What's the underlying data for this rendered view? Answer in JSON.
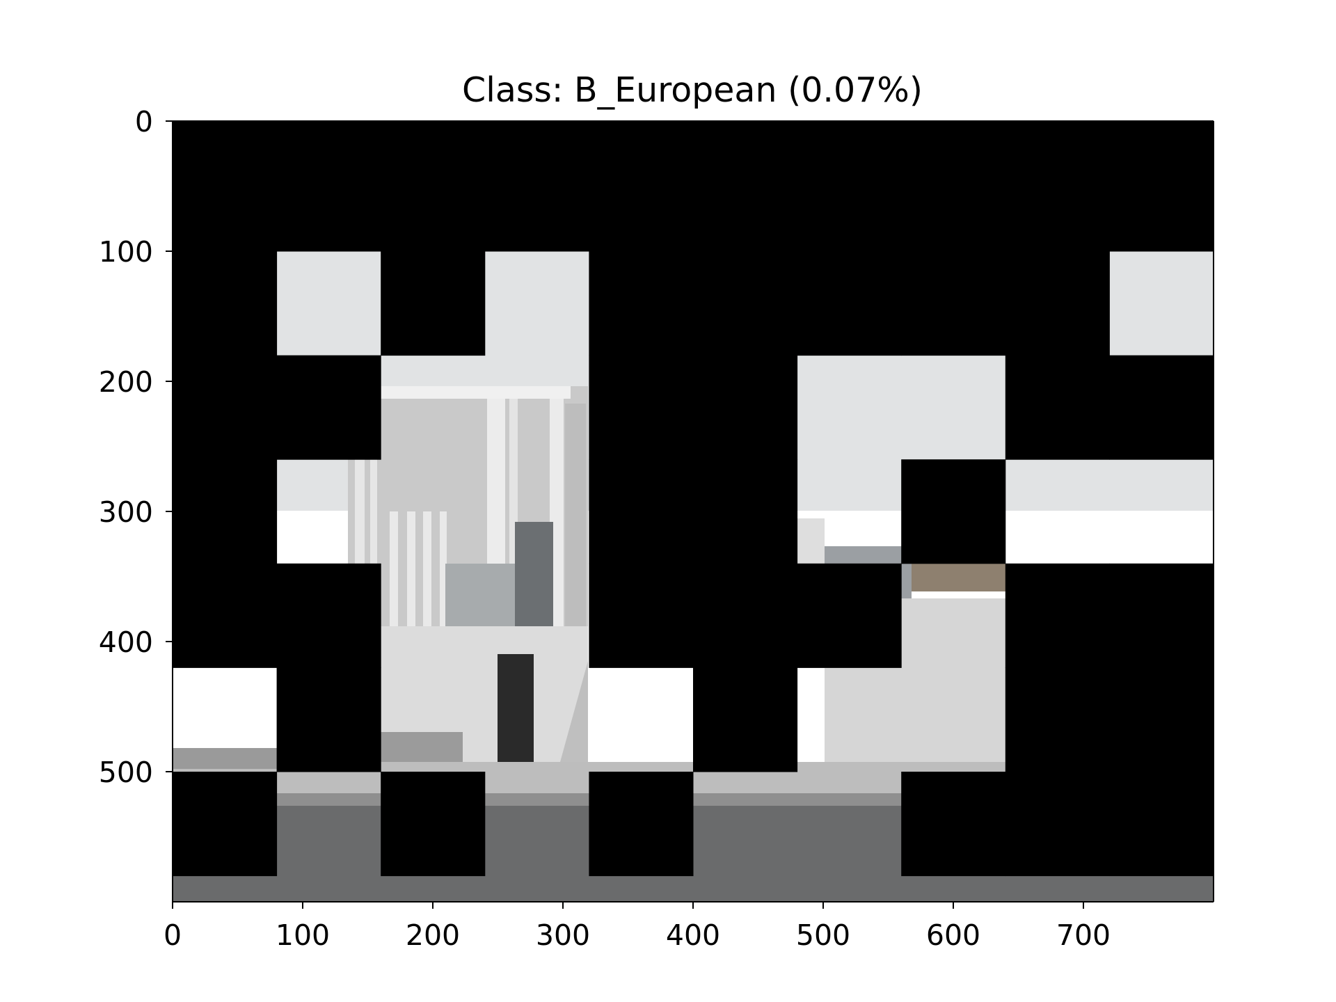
{
  "figure": {
    "title": "Class: B_European (0.07%)"
  },
  "image": {
    "description_free": true,
    "patch_grid": {
      "cols": 10,
      "rows": 8,
      "patch_size_data_units": 80
    },
    "visible_patches": [
      [
        1,
        2
      ],
      [
        3,
        2
      ],
      [
        9,
        2
      ],
      [
        3,
        3
      ],
      [
        2,
        3
      ],
      [
        6,
        3
      ],
      [
        7,
        3
      ],
      [
        1,
        4
      ],
      [
        2,
        4
      ],
      [
        3,
        4
      ],
      [
        6,
        4
      ],
      [
        8,
        4
      ],
      [
        9,
        4
      ],
      [
        2,
        5
      ],
      [
        3,
        5
      ],
      [
        7,
        5
      ],
      [
        0,
        6
      ],
      [
        2,
        6
      ],
      [
        3,
        6
      ],
      [
        4,
        6
      ],
      [
        6,
        6
      ],
      [
        7,
        6
      ],
      [
        1,
        7
      ],
      [
        3,
        7
      ],
      [
        5,
        7
      ],
      [
        6,
        7
      ]
    ],
    "colors": {
      "mask": "#000000",
      "sky": "#dfe1e2",
      "facade": "#cfcfcf",
      "facade_shadow": "#9e9e9e",
      "road": "#5e5f60",
      "sidewalk": "#b8b8b8",
      "dark_window": "#2a2a2a",
      "old_building": "#8a7a66"
    }
  },
  "axes": {
    "x_ticks": [
      "0",
      "100",
      "200",
      "300",
      "400",
      "500",
      "600",
      "700"
    ],
    "x_tick_values": [
      0,
      100,
      200,
      300,
      400,
      500,
      600,
      700
    ],
    "y_ticks": [
      "0",
      "100",
      "200",
      "300",
      "400",
      "500"
    ],
    "y_tick_values": [
      0,
      100,
      200,
      300,
      400,
      500
    ],
    "xlim": [
      0,
      800
    ],
    "ylim": [
      600,
      0
    ]
  }
}
